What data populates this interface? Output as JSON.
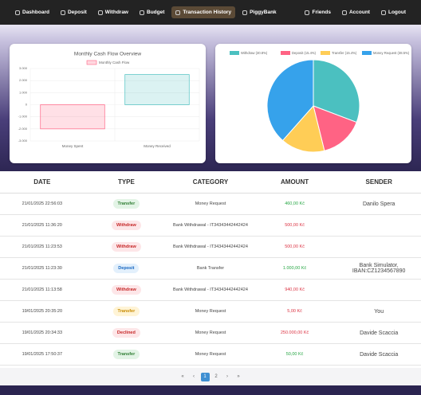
{
  "nav": {
    "left": [
      "Dashboard",
      "Deposit",
      "Withdraw",
      "Budget",
      "Transaction History",
      "PiggyBank"
    ],
    "active": 4,
    "right": [
      "Friends",
      "Account",
      "Logout"
    ]
  },
  "chart_data": [
    {
      "type": "bar",
      "title": "Monthly Cash Flow Overview",
      "series_name": "Monthly Cash Flow",
      "categories": [
        "Money Spent",
        "Money Received"
      ],
      "values": [
        -2000,
        2500
      ],
      "colors": [
        "#ff6384",
        "#4bc0c0"
      ],
      "ylim": [
        -3000,
        3000
      ],
      "yticks": [
        {
          "value": 3000,
          "label": "3.000"
        },
        {
          "value": 2000,
          "label": "2.000"
        },
        {
          "value": 1000,
          "label": "1.000"
        },
        0,
        {
          "value": -1000,
          "label": "-1.000"
        },
        {
          "value": -2000,
          "label": "-2.000"
        },
        {
          "value": -3000,
          "label": "-3.000"
        }
      ],
      "grid": true
    },
    {
      "type": "pie",
      "categories": [
        "Withdraw (30.8%)",
        "Deposit (15.4%)",
        "Transfer (15.4%)",
        "Money Request (38.5%)"
      ],
      "values": [
        30.8,
        15.4,
        15.4,
        38.5
      ],
      "colors": [
        "#4bc0c0",
        "#ff6384",
        "#ffcd56",
        "#36a2eb"
      ]
    }
  ],
  "table": {
    "headers": [
      "DATE",
      "TYPE",
      "CATEGORY",
      "AMOUNT",
      "SENDER"
    ],
    "rows": [
      {
        "date": "21/01/2025 22:56:03",
        "type": "Transfer",
        "badge": "green",
        "category": "Money Request",
        "amount": "460,00 Kč",
        "amount_color": "green",
        "sender": "Danilo Spera"
      },
      {
        "date": "21/01/2025 11:36:20",
        "type": "Withdraw",
        "badge": "red",
        "category": "Bank Withdrawal - IT34343442442424",
        "amount": "500,00 Kč",
        "amount_color": "red"
      },
      {
        "date": "21/01/2025 11:23:53",
        "type": "Withdraw",
        "badge": "red",
        "category": "Bank Withdrawal - IT34343442442424",
        "amount": "500,00 Kč",
        "amount_color": "red"
      },
      {
        "date": "21/01/2025 11:23:30",
        "type": "Deposit",
        "badge": "blue",
        "category": "Bank Transfer",
        "amount": "1.000,00 Kč",
        "amount_color": "green",
        "sender": "Bank Simulator, IBAN:CZ1234567890"
      },
      {
        "date": "21/01/2025 11:13:58",
        "type": "Withdraw",
        "badge": "red",
        "category": "Bank Withdrawal - IT34343442442424",
        "amount": "940,00 Kč",
        "amount_color": "red"
      },
      {
        "date": "19/01/2025 20:35:20",
        "type": "Transfer",
        "badge": "yellow",
        "category": "Money Request",
        "amount": "5,00 Kč",
        "amount_color": "red",
        "sender": "You"
      },
      {
        "date": "19/01/2025 20:34:33",
        "type": "Declined",
        "badge": "red",
        "category": "Money Request",
        "amount": "250.000,00 Kč",
        "amount_color": "red",
        "sender": "Davide Scaccia"
      },
      {
        "date": "19/01/2025 17:50:37",
        "type": "Transfer",
        "badge": "green",
        "category": "Money Request",
        "amount": "50,00 Kč",
        "amount_color": "green",
        "sender": "Davide Scaccia"
      }
    ]
  },
  "pagination": {
    "items": [
      "«",
      "‹",
      "1",
      "2",
      "›",
      "»"
    ],
    "active": 2
  }
}
